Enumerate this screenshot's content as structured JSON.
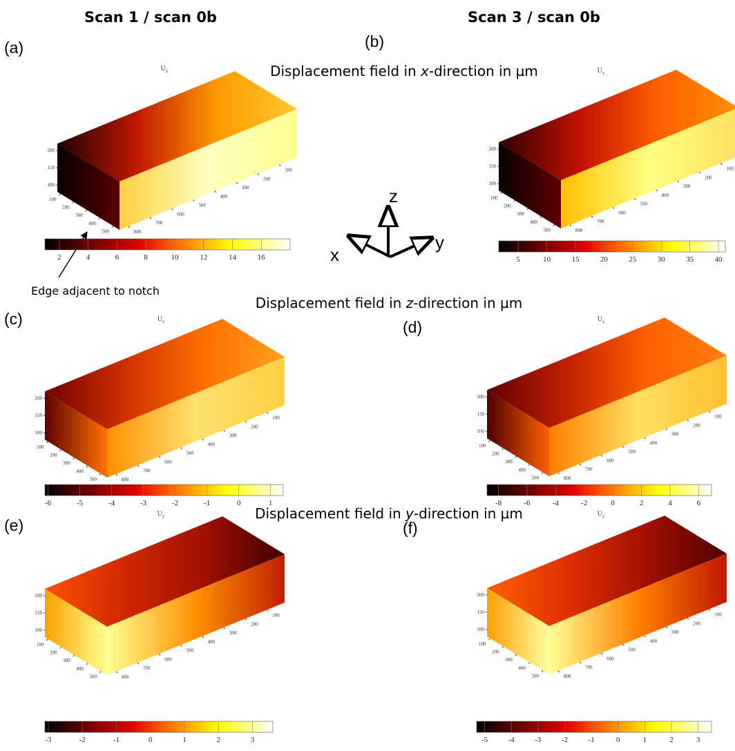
{
  "column_titles": [
    "Scan 1 / scan 0b",
    "Scan 3 / scan 0b"
  ],
  "row_titles": [
    {
      "before": "Displacement field in ",
      "axis": "x",
      "after": "-direction in µm"
    },
    {
      "before": "Displacement field in ",
      "axis": "z",
      "after": "-direction in µm"
    },
    {
      "before": "Displacement field in ",
      "axis": "y",
      "after": "-direction in µm"
    }
  ],
  "box_ticks": {
    "height": [
      100,
      150,
      200
    ],
    "depth": [
      100,
      200,
      300,
      400,
      500
    ],
    "length": [
      100,
      200,
      300,
      400,
      500,
      600,
      700,
      800
    ]
  },
  "panels": [
    {
      "label": "(a)",
      "symbol": "U",
      "subscript": "x",
      "colorbar_lim": [
        1,
        18
      ],
      "colorbar_ticks": [
        2,
        4,
        6,
        8,
        10,
        12,
        14,
        16
      ]
    },
    {
      "label": "(b)",
      "symbol": "U",
      "subscript": "x",
      "colorbar_lim": [
        1.6,
        41.2
      ],
      "colorbar_ticks": [
        5,
        10,
        15,
        20,
        25,
        30,
        35,
        40
      ]
    },
    {
      "label": "(c)",
      "symbol": "U",
      "subscript": "z",
      "colorbar_lim": [
        -6.1,
        1.4
      ],
      "colorbar_ticks": [
        -6,
        -5,
        -4,
        -3,
        -2,
        -1,
        0,
        1
      ]
    },
    {
      "label": "(d)",
      "symbol": "U",
      "subscript": "z",
      "colorbar_lim": [
        -8.8,
        6.9
      ],
      "colorbar_ticks": [
        -8,
        -6,
        -4,
        -2,
        0,
        2,
        4,
        6
      ]
    },
    {
      "label": "(e)",
      "symbol": "U",
      "subscript": "y",
      "colorbar_lim": [
        -3.1,
        3.6
      ],
      "colorbar_ticks": [
        -3,
        -2,
        -1,
        0,
        1,
        2,
        3
      ]
    },
    {
      "label": "(f)",
      "symbol": "U",
      "subscript": "y",
      "colorbar_lim": [
        -5.3,
        3.5
      ],
      "colorbar_ticks": [
        -5,
        -4,
        -3,
        -2,
        -1,
        0,
        1,
        2,
        3
      ]
    }
  ],
  "axes_triad": {
    "x": "x",
    "y": "y",
    "z": "z"
  },
  "annotation": "Edge adjacent to notch"
}
